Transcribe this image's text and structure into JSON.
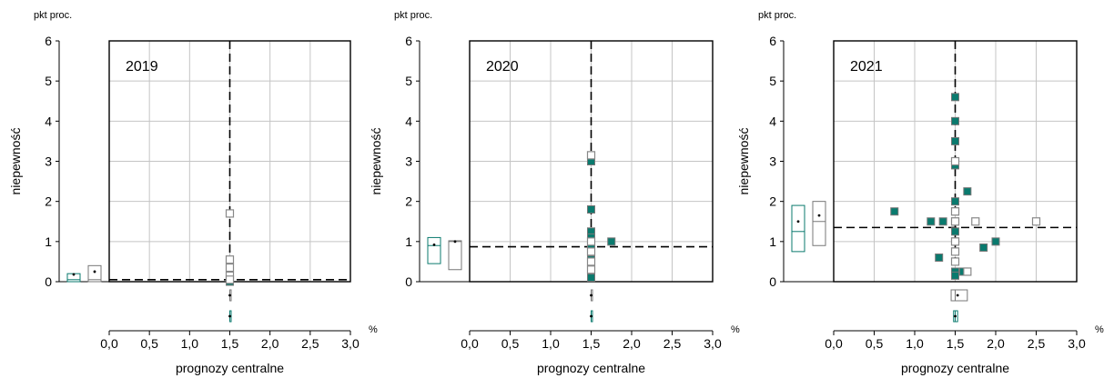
{
  "colors": {
    "teal": "#0a7a6e",
    "grid": "#c4c4c4",
    "box_grey": "#777777",
    "open_marker": "#888888"
  },
  "chart_data": [
    {
      "type": "scatter",
      "title": "2019",
      "ylabel": "niepewność",
      "yunit": "pkt proc.",
      "xlabel": "prognozy centralne",
      "xunit": "%",
      "xlim": [
        0,
        3
      ],
      "ylim": [
        0,
        6
      ],
      "xticks": [
        "0,0",
        "0,5",
        "1,0",
        "1,5",
        "2,0",
        "2,5",
        "3,0"
      ],
      "yticks": [
        "0",
        "1",
        "2",
        "3",
        "4",
        "5",
        "6"
      ],
      "grid": true,
      "ref_x": 1.5,
      "ref_y": 0.05,
      "series": [
        {
          "marker": "filled",
          "points": [
            [
              1.5,
              0.5
            ],
            [
              1.5,
              0.4
            ],
            [
              1.5,
              0.3
            ],
            [
              1.5,
              0.2
            ],
            [
              1.5,
              0.1
            ],
            [
              1.5,
              0.0
            ]
          ]
        },
        {
          "marker": "open",
          "points": [
            [
              1.5,
              1.7
            ],
            [
              1.5,
              0.55
            ],
            [
              1.5,
              0.35
            ],
            [
              1.5,
              0.15
            ],
            [
              1.5,
              0.05
            ]
          ]
        }
      ],
      "y_boxes": [
        {
          "marker": "filled",
          "min": 0.0,
          "q1": 0.0,
          "median": 0.05,
          "q3": 0.2,
          "max": 0.2,
          "mean": 0.18
        },
        {
          "marker": "open",
          "min": 0.0,
          "q1": 0.0,
          "median": 0.05,
          "q3": 0.4,
          "max": 0.4,
          "mean": 0.25
        }
      ],
      "x_boxes": [
        {
          "marker": "open",
          "min": 1.5,
          "q1": 1.5,
          "median": 1.5,
          "q3": 1.5,
          "max": 1.5,
          "mean": 1.5
        },
        {
          "marker": "filled",
          "min": 1.5,
          "q1": 1.5,
          "median": 1.5,
          "q3": 1.5,
          "max": 1.5,
          "mean": 1.5
        }
      ]
    },
    {
      "type": "scatter",
      "title": "2020",
      "ylabel": "niepewność",
      "yunit": "pkt proc.",
      "xlabel": "prognozy centralne",
      "xunit": "%",
      "xlim": [
        0,
        3
      ],
      "ylim": [
        0,
        6
      ],
      "xticks": [
        "0,0",
        "0,5",
        "1,0",
        "1,5",
        "2,0",
        "2,5",
        "3,0"
      ],
      "yticks": [
        "0",
        "1",
        "2",
        "3",
        "4",
        "5",
        "6"
      ],
      "grid": true,
      "ref_x": 1.5,
      "ref_y": 0.87,
      "series": [
        {
          "marker": "filled",
          "points": [
            [
              1.5,
              3.0
            ],
            [
              1.5,
              1.8
            ],
            [
              1.5,
              1.25
            ],
            [
              1.5,
              1.1
            ],
            [
              1.5,
              0.95
            ],
            [
              1.5,
              0.85
            ],
            [
              1.5,
              0.7
            ],
            [
              1.5,
              0.55
            ],
            [
              1.5,
              0.4
            ],
            [
              1.5,
              0.25
            ],
            [
              1.5,
              0.1
            ],
            [
              1.75,
              1.0
            ]
          ]
        },
        {
          "marker": "open",
          "points": [
            [
              1.5,
              3.15
            ],
            [
              1.5,
              1.0
            ],
            [
              1.5,
              0.75
            ],
            [
              1.5,
              0.5
            ],
            [
              1.5,
              0.3
            ]
          ]
        }
      ],
      "y_boxes": [
        {
          "marker": "filled",
          "min": 0.45,
          "q1": 0.45,
          "median": 0.9,
          "q3": 1.1,
          "max": 1.1,
          "mean": 0.92
        },
        {
          "marker": "open",
          "min": 0.3,
          "q1": 0.3,
          "median": 1.0,
          "q3": 1.02,
          "max": 1.02,
          "mean": 1.0
        }
      ],
      "x_boxes": [
        {
          "marker": "open",
          "min": 1.5,
          "q1": 1.5,
          "median": 1.5,
          "q3": 1.5,
          "max": 1.5,
          "mean": 1.5
        },
        {
          "marker": "filled",
          "min": 1.5,
          "q1": 1.5,
          "median": 1.5,
          "q3": 1.5,
          "max": 1.5,
          "mean": 1.5
        }
      ]
    },
    {
      "type": "scatter",
      "title": "2021",
      "ylabel": "niepewność",
      "yunit": "pkt proc.",
      "xlabel": "prognozy centralne",
      "xunit": "%",
      "xlim": [
        0,
        3
      ],
      "ylim": [
        0,
        6
      ],
      "xticks": [
        "0,0",
        "0,5",
        "1,0",
        "1,5",
        "2,0",
        "2,5",
        "3,0"
      ],
      "yticks": [
        "0",
        "1",
        "2",
        "3",
        "4",
        "5",
        "6"
      ],
      "grid": true,
      "ref_x": 1.5,
      "ref_y": 1.35,
      "series": [
        {
          "marker": "filled",
          "points": [
            [
              1.5,
              4.6
            ],
            [
              1.5,
              4.0
            ],
            [
              1.5,
              3.5
            ],
            [
              1.5,
              2.9
            ],
            [
              1.5,
              2.0
            ],
            [
              1.5,
              1.75
            ],
            [
              1.5,
              1.5
            ],
            [
              1.5,
              1.25
            ],
            [
              1.5,
              1.0
            ],
            [
              1.5,
              0.75
            ],
            [
              1.5,
              0.5
            ],
            [
              1.5,
              0.25
            ],
            [
              1.5,
              0.15
            ],
            [
              0.75,
              1.75
            ],
            [
              1.2,
              1.5
            ],
            [
              1.35,
              1.5
            ],
            [
              1.3,
              0.6
            ],
            [
              1.65,
              2.25
            ],
            [
              1.6,
              0.25
            ],
            [
              1.85,
              0.85
            ],
            [
              2.0,
              1.0
            ]
          ]
        },
        {
          "marker": "open",
          "points": [
            [
              1.5,
              3.0
            ],
            [
              1.5,
              1.75
            ],
            [
              1.5,
              1.5
            ],
            [
              1.5,
              1.0
            ],
            [
              1.5,
              0.75
            ],
            [
              1.5,
              0.5
            ],
            [
              1.65,
              0.25
            ],
            [
              1.75,
              1.5
            ],
            [
              2.5,
              1.5
            ]
          ]
        }
      ],
      "y_boxes": [
        {
          "marker": "filled",
          "min": 0.75,
          "q1": 0.75,
          "median": 1.25,
          "q3": 1.9,
          "max": 1.9,
          "mean": 1.5
        },
        {
          "marker": "open",
          "min": 0.9,
          "q1": 0.9,
          "median": 1.5,
          "q3": 2.0,
          "max": 2.0,
          "mean": 1.65
        }
      ],
      "x_boxes": [
        {
          "marker": "open",
          "min": 1.45,
          "q1": 1.45,
          "median": 1.5,
          "q3": 1.65,
          "max": 1.65,
          "mean": 1.53
        },
        {
          "marker": "filled",
          "min": 1.48,
          "q1": 1.48,
          "median": 1.5,
          "q3": 1.53,
          "max": 1.53,
          "mean": 1.5
        }
      ]
    }
  ]
}
